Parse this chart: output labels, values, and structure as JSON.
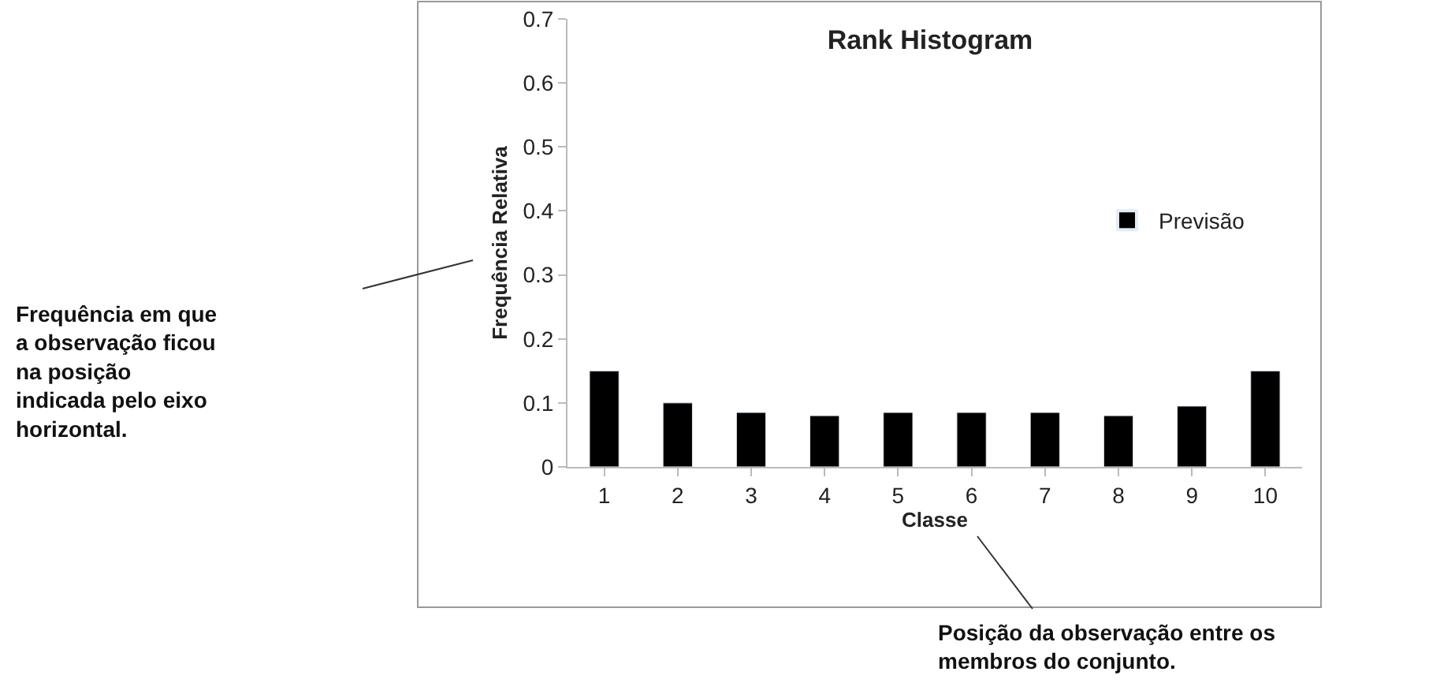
{
  "chart_data": {
    "type": "bar",
    "title": "Rank Histogram",
    "xlabel": "Classe",
    "ylabel": "Frequência Relativa",
    "categories": [
      "1",
      "2",
      "3",
      "4",
      "5",
      "6",
      "7",
      "8",
      "9",
      "10"
    ],
    "series": [
      {
        "name": "Previsão",
        "color": "#000000",
        "values": [
          0.15,
          0.1,
          0.085,
          0.08,
          0.085,
          0.085,
          0.085,
          0.08,
          0.095,
          0.15
        ]
      }
    ],
    "ylim": [
      0,
      0.7
    ],
    "yticks": [
      0,
      0.1,
      0.2,
      0.3,
      0.4,
      0.5,
      0.6,
      0.7
    ],
    "legend": "top right",
    "annotations": [
      "Frequência em que\na observação ficou\nna posição\nindicada pelo eixo\nhorizontal.",
      "Posição da observação entre os\nmembros do conjunto."
    ]
  }
}
